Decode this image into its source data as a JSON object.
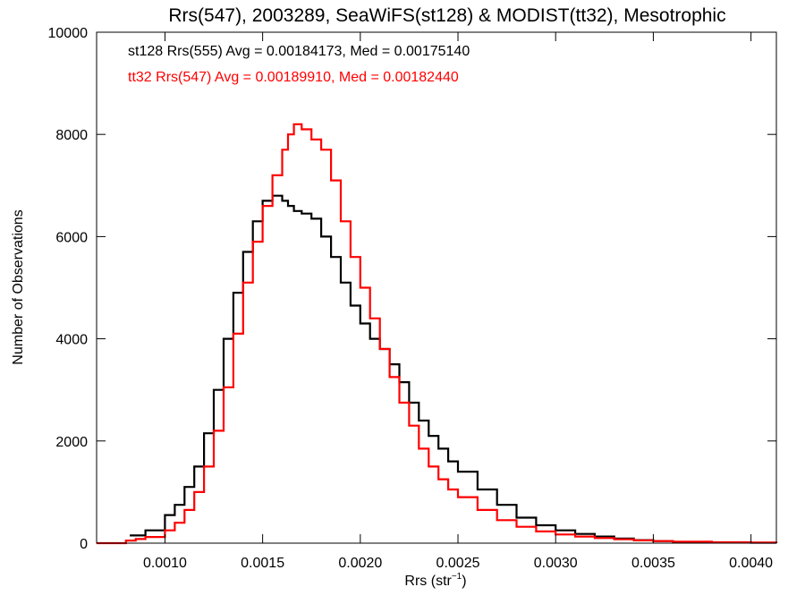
{
  "chart_data": {
    "type": "line",
    "step": true,
    "title": "Rrs(547), 2003289, SeaWiFS(st128) & MODIST(tt32), Mesotrophic",
    "xlabel": {
      "main": "Rrs (str",
      "sup": "−1",
      "close": ")"
    },
    "ylabel": "Number of Observations",
    "xlim": [
      0.00065,
      0.00413
    ],
    "ylim": [
      0,
      10000
    ],
    "x_ticks": [
      0.001,
      0.0015,
      0.002,
      0.0025,
      0.003,
      0.0035,
      0.004
    ],
    "x_tick_labels": [
      "0.0010",
      "0.0015",
      "0.0020",
      "0.0025",
      "0.0030",
      "0.0035",
      "0.0040"
    ],
    "y_ticks": [
      0,
      2000,
      4000,
      6000,
      8000,
      10000
    ],
    "y_tick_labels": [
      "0",
      "2000",
      "4000",
      "6000",
      "8000",
      "10000"
    ],
    "grid": false,
    "legend_position": "top-left",
    "series": [
      {
        "name": "st128 Rrs(555) Avg = 0.00184173, Med = 0.00175140",
        "color": "#000000",
        "x": [
          0.00082,
          0.0009,
          0.001,
          0.00105,
          0.0011,
          0.00115,
          0.0012,
          0.00125,
          0.0013,
          0.00135,
          0.0014,
          0.00145,
          0.0015,
          0.00155,
          0.0016,
          0.00163,
          0.00166,
          0.0017,
          0.00175,
          0.0018,
          0.00185,
          0.0019,
          0.00195,
          0.002,
          0.00205,
          0.0021,
          0.00215,
          0.0022,
          0.00225,
          0.0023,
          0.00235,
          0.0024,
          0.00245,
          0.0025,
          0.0026,
          0.0027,
          0.0028,
          0.0029,
          0.003,
          0.0031,
          0.0032,
          0.0033,
          0.0034,
          0.0035,
          0.0036,
          0.0038,
          0.004,
          0.00413
        ],
        "y": [
          150,
          250,
          550,
          750,
          1100,
          1500,
          2150,
          3000,
          4000,
          4900,
          5700,
          6300,
          6700,
          6800,
          6700,
          6600,
          6500,
          6450,
          6350,
          6000,
          5600,
          5100,
          4650,
          4300,
          4000,
          3800,
          3500,
          3150,
          2750,
          2400,
          2100,
          1850,
          1600,
          1400,
          1050,
          750,
          500,
          350,
          250,
          180,
          130,
          90,
          60,
          40,
          25,
          15,
          8,
          5
        ]
      },
      {
        "name": "tt32 Rrs(547) Avg = 0.00189910, Med = 0.00182440",
        "color": "#ff0000",
        "x": [
          0.00065,
          0.0008,
          0.00085,
          0.0009,
          0.001,
          0.00105,
          0.0011,
          0.00115,
          0.0012,
          0.00125,
          0.0013,
          0.00135,
          0.0014,
          0.00145,
          0.0015,
          0.00155,
          0.0016,
          0.00163,
          0.00166,
          0.0017,
          0.00175,
          0.0018,
          0.00185,
          0.0019,
          0.00195,
          0.002,
          0.00205,
          0.0021,
          0.00215,
          0.0022,
          0.00225,
          0.0023,
          0.00235,
          0.0024,
          0.00245,
          0.0025,
          0.0026,
          0.0027,
          0.0028,
          0.0029,
          0.003,
          0.0031,
          0.0032,
          0.0033,
          0.0034,
          0.0035,
          0.0036,
          0.0038,
          0.004,
          0.00413
        ],
        "y": [
          0,
          50,
          80,
          120,
          250,
          400,
          650,
          1000,
          1500,
          2200,
          3050,
          4100,
          5100,
          5900,
          6600,
          7200,
          7700,
          8000,
          8200,
          8100,
          7900,
          7700,
          7100,
          6300,
          5600,
          5000,
          4400,
          3800,
          3250,
          2750,
          2300,
          1850,
          1500,
          1250,
          1050,
          900,
          650,
          450,
          320,
          230,
          170,
          130,
          100,
          75,
          55,
          40,
          30,
          18,
          10,
          5
        ]
      }
    ]
  }
}
